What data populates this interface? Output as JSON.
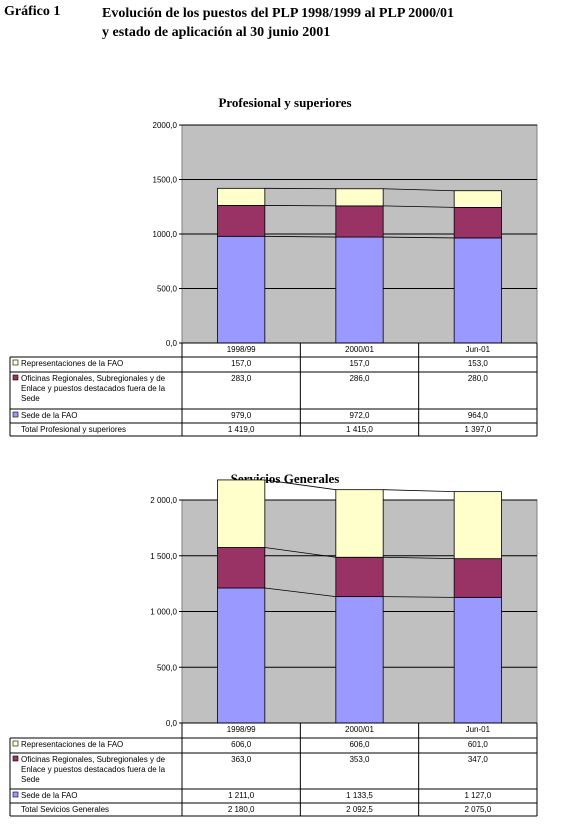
{
  "header": {
    "label": "Gráfico 1",
    "title_line1": "Evolución de los puestos del PLP 1998/1999 al PLP 2000/01",
    "title_line2": "y estado de aplicación al 30 junio 2001"
  },
  "colors": {
    "plot_bg": "#c0c0c0",
    "sede": "#9999ff",
    "oficinas": "#993366",
    "representaciones": "#ffffcc"
  },
  "chart_data": [
    {
      "type": "bar",
      "stacked": true,
      "title": "Profesional y superiores",
      "categories": [
        "1998/99",
        "2000/01",
        "Jun-01"
      ],
      "ylim": [
        0,
        2000
      ],
      "yticks": [
        "0,0",
        "500,0",
        "1000,0",
        "1500,0",
        "2000,0"
      ],
      "grid": true,
      "series": [
        {
          "name": "Sede de la FAO",
          "values": [
            979,
            972,
            964
          ],
          "labels": [
            "979,0",
            "972,0",
            "964,0"
          ]
        },
        {
          "name": "Oficinas Regionales, Subregionales y de Enlace y puestos destacados fuera de la Sede",
          "values": [
            283,
            286,
            280
          ],
          "labels": [
            "283,0",
            "286,0",
            "280,0"
          ]
        },
        {
          "name": "Representaciones de la FAO",
          "values": [
            157,
            157,
            153
          ],
          "labels": [
            "157,0",
            "157,0",
            "153,0"
          ]
        }
      ],
      "total": {
        "name": "Total Profesional y superiores",
        "labels": [
          "1 419,0",
          "1 415,0",
          "1 397,0"
        ]
      }
    },
    {
      "type": "bar",
      "stacked": true,
      "title": "Servicios Generales",
      "categories": [
        "1998/99",
        "2000/01",
        "Jun-01"
      ],
      "ylim": [
        0,
        2000
      ],
      "yticks": [
        "0,0",
        "500,0",
        "1 000,0",
        "1 500,0",
        "2 000,0"
      ],
      "grid": true,
      "series": [
        {
          "name": "Sede de la FAO",
          "values": [
            1211,
            1133.5,
            1127
          ],
          "labels": [
            "1 211,0",
            "1 133,5",
            "1 127,0"
          ]
        },
        {
          "name": "Oficinas Regionales, Subregionales y de Enlace y puestos destacados fuera de la Sede",
          "values": [
            363,
            353,
            347
          ],
          "labels": [
            "363,0",
            "353,0",
            "347,0"
          ]
        },
        {
          "name": "Representaciones de la FAO",
          "values": [
            606,
            606,
            601
          ],
          "labels": [
            "606,0",
            "606,0",
            "601,0"
          ]
        }
      ],
      "total": {
        "name": "Total Sevicios Generales",
        "labels": [
          "2 180,0",
          "2 092,5",
          "2 075,0"
        ]
      }
    }
  ]
}
